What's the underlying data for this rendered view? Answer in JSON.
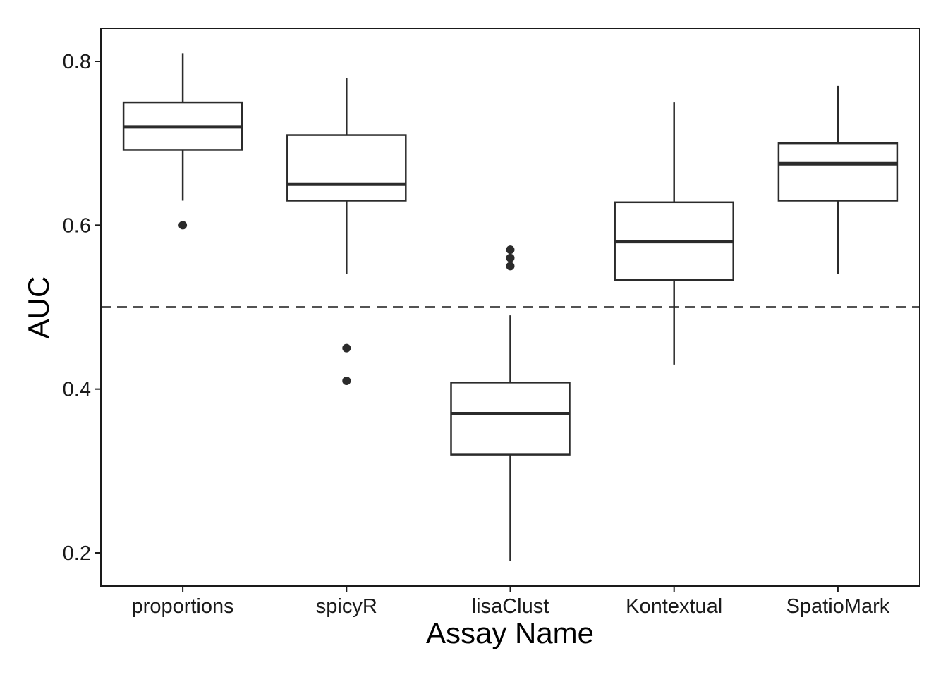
{
  "chart_data": {
    "type": "box",
    "xlabel": "Assay Name",
    "ylabel": "AUC",
    "ylim": [
      0.16,
      0.845
    ],
    "yticks": [
      {
        "value": 0.2,
        "label": "0.2"
      },
      {
        "value": 0.4,
        "label": "0.4"
      },
      {
        "value": 0.6,
        "label": "0.6"
      },
      {
        "value": 0.8,
        "label": "0.8"
      }
    ],
    "reference_line": {
      "y": 0.5,
      "style": "dashed"
    },
    "grid": false,
    "categories": [
      "proportions",
      "spicyR",
      "lisaClust",
      "Kontextual",
      "SpatioMark"
    ],
    "boxes": [
      {
        "category": "proportions",
        "whisker_low": 0.63,
        "q1": 0.692,
        "median": 0.72,
        "q3": 0.75,
        "whisker_high": 0.81,
        "outliers": [
          0.6
        ]
      },
      {
        "category": "spicyR",
        "whisker_low": 0.54,
        "q1": 0.63,
        "median": 0.65,
        "q3": 0.71,
        "whisker_high": 0.78,
        "outliers": [
          0.45,
          0.41
        ]
      },
      {
        "category": "lisaClust",
        "whisker_low": 0.19,
        "q1": 0.32,
        "median": 0.37,
        "q3": 0.408,
        "whisker_high": 0.49,
        "outliers": [
          0.57,
          0.56,
          0.55
        ]
      },
      {
        "category": "Kontextual",
        "whisker_low": 0.43,
        "q1": 0.533,
        "median": 0.58,
        "q3": 0.628,
        "whisker_high": 0.75,
        "outliers": []
      },
      {
        "category": "SpatioMark",
        "whisker_low": 0.54,
        "q1": 0.63,
        "median": 0.675,
        "q3": 0.7,
        "whisker_high": 0.77,
        "outliers": []
      }
    ],
    "colors": {
      "box_stroke": "#2b2b2b",
      "panel_border": "#1a1a1a",
      "background": "#ffffff"
    }
  }
}
